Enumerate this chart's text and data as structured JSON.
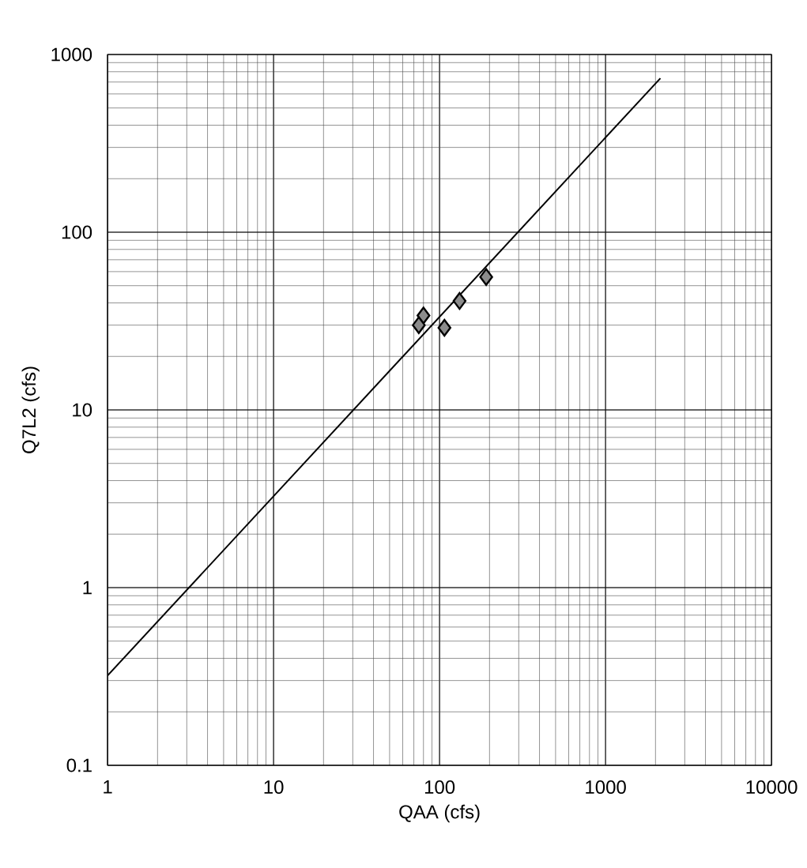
{
  "chart_data": {
    "type": "scatter",
    "xlabel": "QAA (cfs)",
    "ylabel": "Q7L2 (cfs)",
    "log": "xy",
    "grid": true,
    "marker": "diamond",
    "xlim": [
      1,
      10000
    ],
    "ylim": [
      0.1,
      1000
    ],
    "xticks": [
      1,
      10,
      100,
      1000,
      10000
    ],
    "yticks": [
      0.1,
      1,
      10,
      100,
      1000
    ],
    "series": [
      {
        "color": "#8c8c8c",
        "x": [
          191,
          132,
          107,
          80,
          75
        ],
        "values": [
          56,
          41,
          29,
          34,
          30
        ]
      },
      {
        "type": "line",
        "color": "#000000",
        "marker": "none",
        "x": [
          1,
          2140
        ],
        "values": [
          0.32,
          735
        ]
      }
    ]
  }
}
